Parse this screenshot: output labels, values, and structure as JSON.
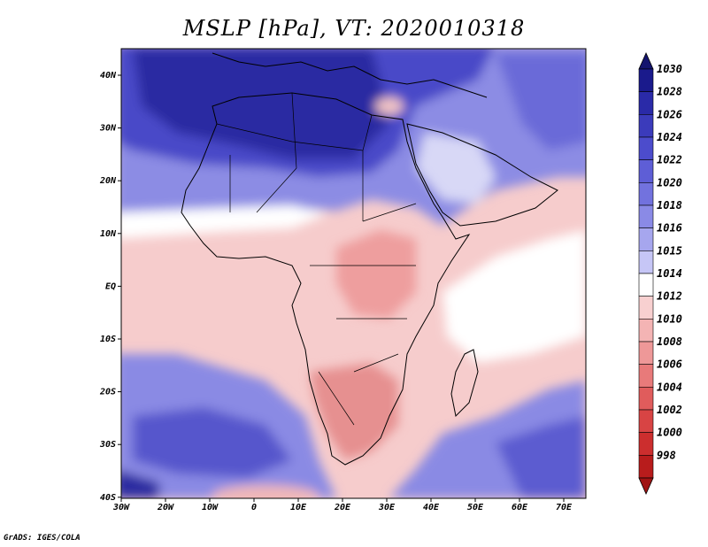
{
  "title": "MSLP [hPa], VT: 2020010318",
  "credit": "GrADS: IGES/COLA",
  "lat_ticks": [
    "40N",
    "30N",
    "20N",
    "10N",
    "EQ",
    "10S",
    "20S",
    "30S",
    "40S"
  ],
  "lon_ticks": [
    "30W",
    "20W",
    "10W",
    "0",
    "10E",
    "20E",
    "30E",
    "40E",
    "50E",
    "60E",
    "70E"
  ],
  "colorbar": {
    "labels": [
      "1030",
      "1028",
      "1026",
      "1024",
      "1022",
      "1020",
      "1018",
      "1016",
      "1015",
      "1014",
      "1012",
      "1010",
      "1008",
      "1006",
      "1004",
      "1002",
      "1000",
      "998"
    ],
    "colors": [
      "#1a1a8c",
      "#2a2aa8",
      "#3b3bbb",
      "#4c4ccc",
      "#5e5ed6",
      "#7272de",
      "#8a8ae6",
      "#a6a6ee",
      "#c6c6f6",
      "#ffffff",
      "#f8d0d0",
      "#f4b4b4",
      "#ee9898",
      "#e87a7a",
      "#e05c5c",
      "#d84444",
      "#cc2e2e",
      "#b81c1c"
    ],
    "top_arrow_color": "#14146e",
    "bottom_arrow_color": "#a01414"
  },
  "colors": {
    "deep_high": "#2c2ca6",
    "high": "#6464d8",
    "mid_high": "#9a9ae8",
    "near_normal": "#dcdcf8",
    "low": "#f4c4c4",
    "deeper_low": "#e89898"
  }
}
